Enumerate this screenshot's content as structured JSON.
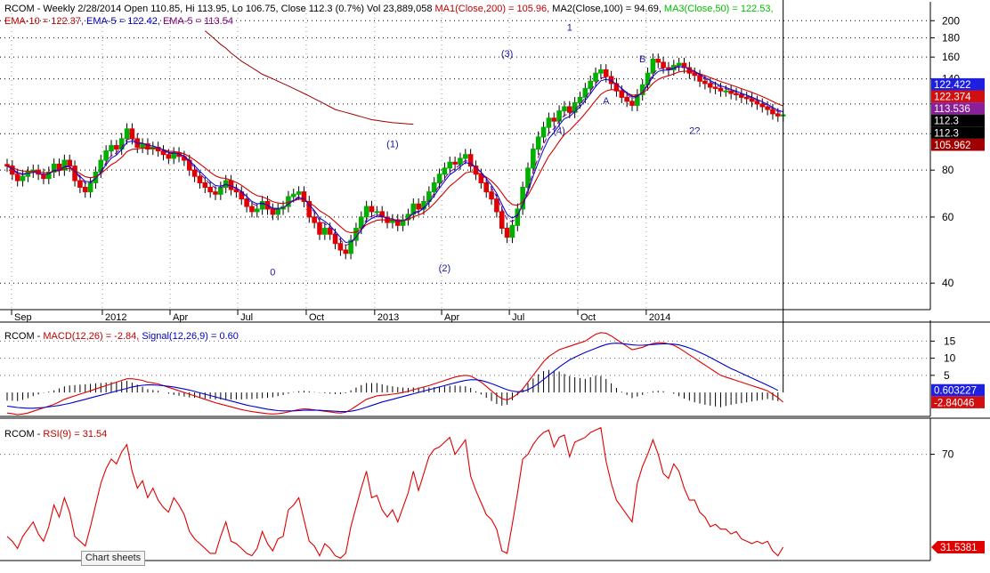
{
  "chart_data": [
    {
      "type": "candlestick",
      "title": "RCOM - Weekly 2/28/2014 Open 110.85, Hi 113.95, Lo 106.75, Close 112.3 (0.7%) Vol 23,889,058",
      "title_parts": [
        {
          "text": "RCOM - Weekly 2/28/2014 Open 110.85, Hi 113.95, Lo 106.75, Close 112.3 (0.7%) Vol 23,889,058 ",
          "color": "#000000"
        },
        {
          "text": "MA1(Close,200) = 105.96,",
          "color": "#c00000"
        },
        {
          "text": " MA2(Close,100) = 94.69,",
          "color": "#000000"
        },
        {
          "text": " MA3(Close,50) = 122.53,",
          "color": "#00c000"
        }
      ],
      "subtitle_parts": [
        {
          "text": "EMA-10 = 122.37,",
          "color": "#c00000"
        },
        {
          "text": " EMA-5 = 122.42,",
          "color": "#0000c0"
        },
        {
          "text": " EMA-5 = 113.54",
          "color": "#800080"
        }
      ],
      "y_scale": "log",
      "ylim": [
        34,
        215
      ],
      "y_ticks": [
        40,
        60,
        80,
        100,
        120,
        140,
        160,
        180,
        200
      ],
      "x_labels": [
        "Sep",
        "2012",
        "Apr",
        "Jul",
        "Oct",
        "2013",
        "Apr",
        "Jul",
        "Oct",
        "2014"
      ],
      "grid": true,
      "series": [
        {
          "name": "Close",
          "x_start": "2011-08-26",
          "interval": "weekly",
          "values": [
            82,
            78,
            75,
            77,
            79,
            80,
            78,
            76,
            79,
            83,
            80,
            85,
            82,
            75,
            72,
            70,
            74,
            79,
            85,
            90,
            93,
            91,
            97,
            103,
            97,
            92,
            94,
            91,
            92,
            90,
            88,
            86,
            89,
            87,
            85,
            80,
            77,
            74,
            72,
            70,
            69,
            72,
            75,
            71,
            70,
            67,
            64,
            62,
            63,
            66,
            63,
            61,
            63,
            64,
            68,
            69,
            70,
            66,
            60,
            58,
            54,
            56,
            54,
            51,
            49,
            48,
            52,
            56,
            60,
            64,
            62,
            62,
            60,
            58,
            59,
            57,
            59,
            61,
            65,
            63,
            66,
            70,
            74,
            78,
            81,
            84,
            83,
            86,
            88,
            82,
            78,
            74,
            70,
            67,
            62,
            56,
            53,
            57,
            63,
            72,
            81,
            91,
            98,
            104,
            110,
            108,
            115,
            118,
            114,
            121,
            125,
            132,
            138,
            145,
            148,
            142,
            136,
            130,
            125,
            122,
            119,
            127,
            135,
            145,
            158,
            155,
            150,
            148,
            152,
            154,
            150,
            145,
            143,
            138,
            136,
            133,
            132,
            130,
            130,
            128,
            127,
            125,
            124,
            122,
            120,
            118,
            116,
            113,
            111.5,
            112.3
          ]
        },
        {
          "name": "MA1(Close,200)",
          "x_start": "2012-05-18",
          "interval": "weekly",
          "values": [
            188,
            183,
            178,
            173,
            169,
            164,
            160,
            156,
            153,
            150,
            147,
            144,
            142,
            140,
            138,
            136,
            134,
            132,
            130,
            128,
            126,
            124,
            122,
            120,
            118,
            116,
            115,
            114,
            113,
            112,
            111,
            110,
            109,
            108.5,
            108,
            107.5,
            107,
            106.8,
            106.5,
            106.2,
            106
          ]
        }
      ],
      "annotations": [
        {
          "label": "0",
          "x": "2012-08-17",
          "y": 42
        },
        {
          "label": "(1)",
          "x": "2013-01-25",
          "y": 92
        },
        {
          "label": "(2)",
          "x": "2013-04-05",
          "y": 43
        },
        {
          "label": "(3)",
          "x": "2013-06-28",
          "y": 160
        },
        {
          "label": "(4)",
          "x": "2013-09-06",
          "y": 100
        },
        {
          "label": "1",
          "x": "2013-09-20",
          "y": 188
        },
        {
          "label": "A",
          "x": "2013-11-08",
          "y": 120
        },
        {
          "label": "B",
          "x": "2013-12-27",
          "y": 155
        },
        {
          "label": "2?",
          "x": "2014-03-07",
          "y": 100
        }
      ],
      "value_tags": [
        {
          "text": "122.422",
          "bg": "#1f1fe0",
          "fg": "#ffffff"
        },
        {
          "text": "122.374",
          "bg": "#d01010",
          "fg": "#ffffff"
        },
        {
          "text": "113.536",
          "bg": "#8a1f9a",
          "fg": "#ffffff"
        },
        {
          "text": "112.3",
          "bg": "#000000",
          "fg": "#ffffff"
        },
        {
          "text": "112.3",
          "bg": "#000000",
          "fg": "#ffffff"
        },
        {
          "text": "105.962",
          "bg": "#a00000",
          "fg": "#ffffff"
        }
      ],
      "colors": {
        "up": "#00b000",
        "down": "#e00000",
        "ema10": "#d00000",
        "ema5": "#0000d0",
        "ema5b": "#800080",
        "ma1": "#a00000"
      }
    },
    {
      "type": "line",
      "title_parts": [
        {
          "text": "RCOM - ",
          "color": "#000000"
        },
        {
          "text": "MACD(12,26) = -2.84,",
          "color": "#c00000"
        },
        {
          "text": " Signal(12,26,9) = 0.60",
          "color": "#0000c0"
        }
      ],
      "y_ticks": [
        5,
        10,
        15
      ],
      "ylim": [
        -7,
        19
      ],
      "grid": true,
      "series": [
        {
          "name": "MACD(12,26)",
          "x_start": "2011-08-26",
          "interval": "weekly",
          "values": [
            -6,
            -6.2,
            -6.5,
            -6.3,
            -6,
            -5.5,
            -5,
            -4.5,
            -4,
            -3.5,
            -2.8,
            -2,
            -1.5,
            -1,
            -0.5,
            0,
            0.5,
            1,
            1.5,
            2,
            2.5,
            3,
            3.5,
            4,
            4,
            3.8,
            3.5,
            3,
            2.8,
            2.5,
            2,
            1.5,
            1,
            0.5,
            0,
            -0.5,
            -1,
            -1.5,
            -2,
            -2.5,
            -3,
            -3.4,
            -3.8,
            -4.2,
            -4.6,
            -5,
            -5.3,
            -5.6,
            -5.8,
            -6,
            -6.2,
            -6.3,
            -6.2,
            -6,
            -5.7,
            -5.3,
            -5,
            -4.8,
            -4.9,
            -5.1,
            -5.3,
            -5.5,
            -5.7,
            -5.9,
            -6,
            -5.8,
            -5,
            -4,
            -3,
            -2,
            -1.5,
            -1,
            -0.8,
            -0.7,
            -0.5,
            -0.3,
            0,
            0.3,
            0.8,
            1.2,
            1.6,
            2,
            2.5,
            3,
            3.5,
            4,
            4.5,
            4.8,
            5,
            4.8,
            4,
            3,
            1.8,
            0.5,
            -0.8,
            -1.8,
            -2.2,
            -1.5,
            -0.5,
            1,
            3,
            5,
            7,
            9,
            10.5,
            11.5,
            12.5,
            13,
            13.5,
            14,
            14.5,
            15,
            16,
            17,
            17.5,
            17.3,
            16.5,
            15.5,
            14.5,
            13.5,
            12.5,
            12.8,
            13.2,
            13.8,
            14.3,
            14.5,
            14.5,
            14.2,
            13.8,
            13,
            12,
            11,
            10,
            9,
            8,
            7,
            6,
            5,
            4.5,
            4,
            3.5,
            3,
            2.5,
            2,
            1.5,
            1,
            0.5,
            -0.5,
            -1.5,
            -2.84
          ]
        },
        {
          "name": "Signal(12,26,9)",
          "x_start": "2011-08-26",
          "interval": "weekly",
          "values": [
            -4,
            -4.2,
            -4.4,
            -4.5,
            -4.6,
            -4.6,
            -4.5,
            -4.4,
            -4.2,
            -4,
            -3.8,
            -3.5,
            -3.2,
            -2.8,
            -2.4,
            -2,
            -1.6,
            -1.2,
            -0.8,
            -0.4,
            0,
            0.4,
            0.8,
            1.2,
            1.6,
            1.9,
            2.1,
            2.2,
            2.2,
            2.1,
            2,
            1.8,
            1.6,
            1.3,
            1,
            0.7,
            0.3,
            -0.1,
            -0.5,
            -0.9,
            -1.3,
            -1.7,
            -2.1,
            -2.5,
            -2.9,
            -3.3,
            -3.7,
            -4,
            -4.3,
            -4.6,
            -4.9,
            -5.1,
            -5.3,
            -5.4,
            -5.4,
            -5.4,
            -5.3,
            -5.2,
            -5.2,
            -5.2,
            -5.2,
            -5.3,
            -5.4,
            -5.5,
            -5.6,
            -5.6,
            -5.5,
            -5.2,
            -4.8,
            -4.3,
            -3.8,
            -3.3,
            -2.8,
            -2.4,
            -2,
            -1.6,
            -1.2,
            -0.8,
            -0.4,
            0,
            0.4,
            0.8,
            1.2,
            1.6,
            2,
            2.4,
            2.8,
            3.2,
            3.5,
            3.7,
            3.7,
            3.5,
            3.1,
            2.6,
            2,
            1.4,
            0.8,
            0.4,
            0.2,
            0.3,
            0.8,
            1.6,
            2.6,
            3.8,
            5,
            6.2,
            7.4,
            8.5,
            9.5,
            10.3,
            11,
            11.7,
            12.3,
            12.9,
            13.5,
            14,
            14.3,
            14.4,
            14.3,
            14.1,
            13.9,
            13.8,
            13.8,
            13.9,
            14,
            14.1,
            14.2,
            14.2,
            14.1,
            13.9,
            13.5,
            13,
            12.4,
            11.7,
            11,
            10.2,
            9.4,
            8.6,
            7.8,
            7,
            6.3,
            5.6,
            4.9,
            4.2,
            3.5,
            2.8,
            2.1,
            1.4,
            0.6
          ]
        }
      ],
      "value_tags": [
        {
          "text": "0.603227",
          "bg": "#1f1fe0",
          "fg": "#ffffff"
        },
        {
          "text": "-2.84046",
          "bg": "#d01010",
          "fg": "#ffffff"
        }
      ]
    },
    {
      "type": "line",
      "title_parts": [
        {
          "text": "RCOM - ",
          "color": "#000000"
        },
        {
          "text": "RSI(9) = 31.54",
          "color": "#c00000"
        }
      ],
      "y_ticks": [
        70
      ],
      "ylim": [
        26,
        82
      ],
      "grid": true,
      "series": [
        {
          "name": "RSI(9)",
          "x_start": "2011-08-26",
          "interval": "weekly",
          "values": [
            36,
            34,
            31,
            36,
            39,
            42,
            37,
            34,
            40,
            49,
            44,
            52,
            46,
            36,
            34,
            32,
            40,
            49,
            58,
            64,
            68,
            66,
            71,
            74,
            63,
            56,
            59,
            52,
            56,
            51,
            48,
            46,
            52,
            49,
            45,
            38,
            35,
            33,
            31,
            29,
            29,
            36,
            42,
            34,
            33,
            31,
            29,
            28,
            31,
            38,
            33,
            30,
            35,
            36,
            47,
            49,
            52,
            43,
            34,
            32,
            28,
            33,
            31,
            28,
            27,
            29,
            40,
            48,
            56,
            63,
            52,
            53,
            47,
            44,
            47,
            42,
            48,
            54,
            63,
            55,
            62,
            69,
            72,
            73,
            75,
            77,
            70,
            73,
            76,
            61,
            55,
            50,
            45,
            43,
            39,
            30,
            29,
            41,
            54,
            68,
            70,
            74,
            77,
            79,
            80,
            73,
            77,
            78,
            69,
            75,
            76,
            77,
            79,
            80,
            81,
            67,
            58,
            51,
            48,
            45,
            42,
            58,
            65,
            70,
            76,
            70,
            62,
            60,
            66,
            63,
            56,
            51,
            51,
            46,
            44,
            40,
            41,
            39,
            39,
            37,
            38,
            35,
            34,
            33,
            34,
            33,
            34,
            30,
            28,
            31.54
          ]
        }
      ],
      "value_tags": [
        {
          "text": "31.5381",
          "bg": "#e00000",
          "fg": "#ffffff"
        }
      ]
    }
  ],
  "ui": {
    "chart_sheets_label": "Chart sheets"
  }
}
